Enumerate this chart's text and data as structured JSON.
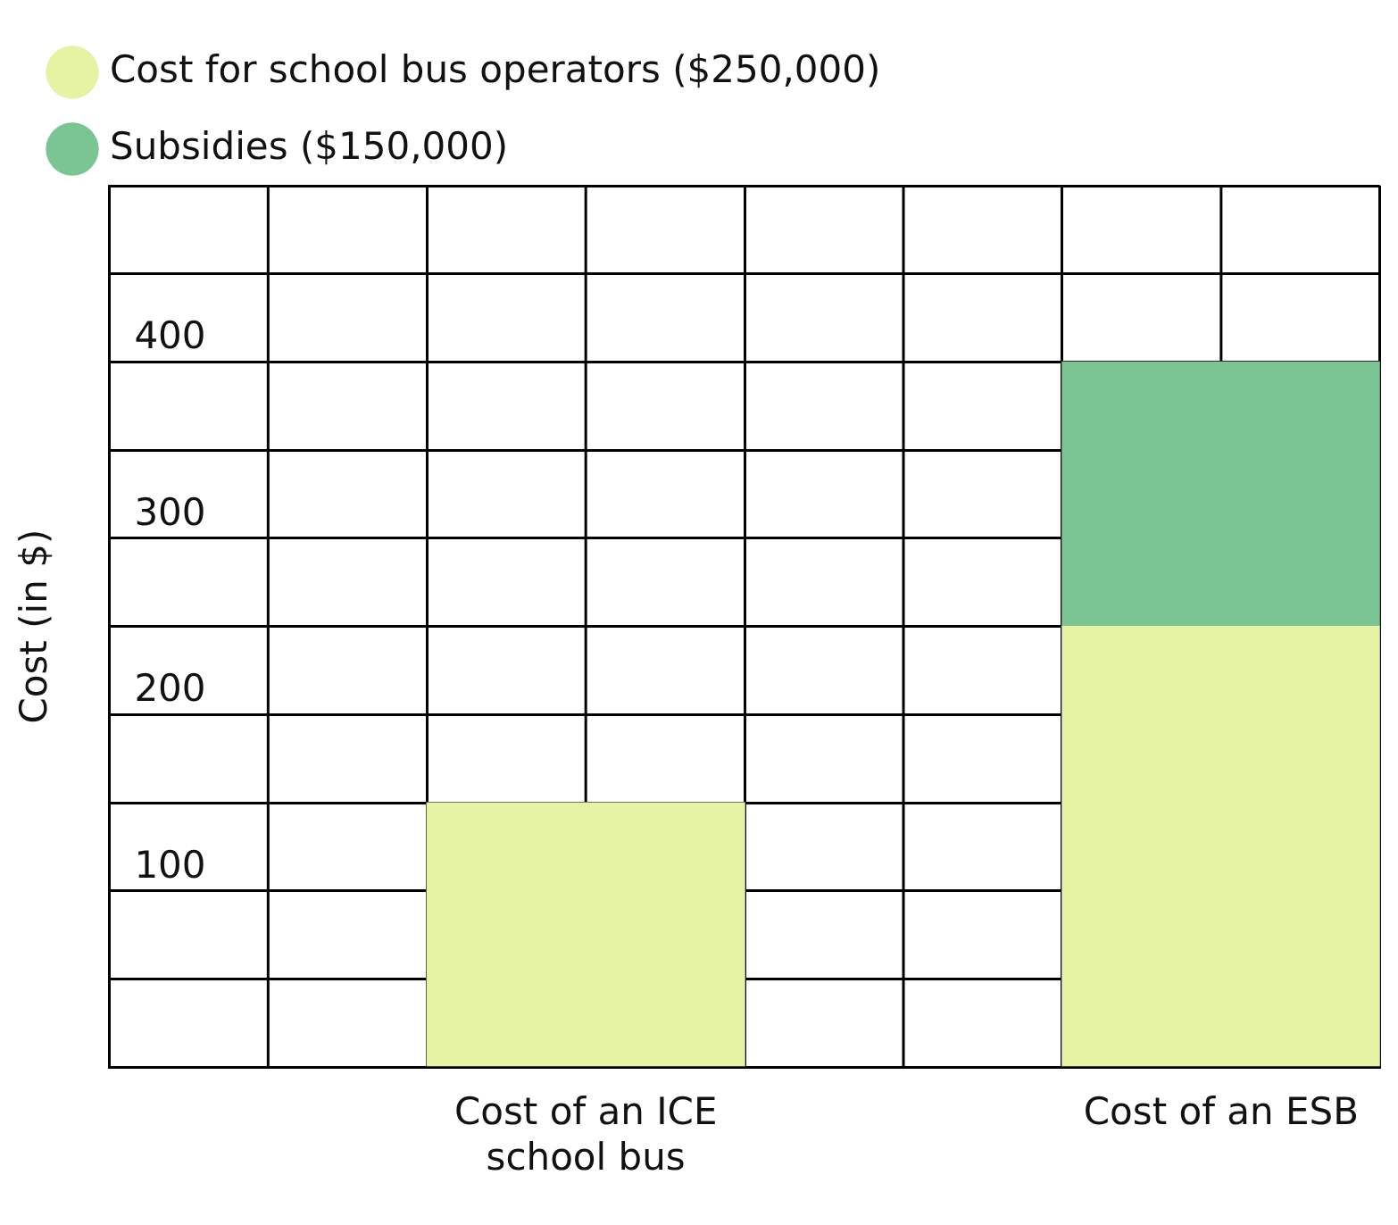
{
  "chart_data": {
    "type": "bar",
    "stacked": true,
    "ylabel": "Cost (in $)",
    "categories": [
      null,
      "Cost of an ICE school bus",
      null,
      "Cost of an ESB"
    ],
    "series": [
      {
        "name": "Cost for school bus operators ($250,000)",
        "color": "#e5f3a3",
        "values": [
          null,
          150,
          null,
          250
        ]
      },
      {
        "name": "Subsidies ($150,000)",
        "color": "#7bc594",
        "values": [
          null,
          null,
          null,
          150
        ]
      }
    ],
    "ylim": [
      0,
      500
    ],
    "yticks": [
      {
        "value": 0,
        "label": null
      },
      {
        "value": 50,
        "label": null
      },
      100,
      {
        "value": 150,
        "label": null
      },
      200,
      {
        "value": 250,
        "label": null
      },
      300,
      {
        "value": 350,
        "label": null
      },
      400,
      {
        "value": 450,
        "label": null
      },
      {
        "value": 500,
        "label": null
      }
    ],
    "grid": true,
    "legend": "top left"
  }
}
